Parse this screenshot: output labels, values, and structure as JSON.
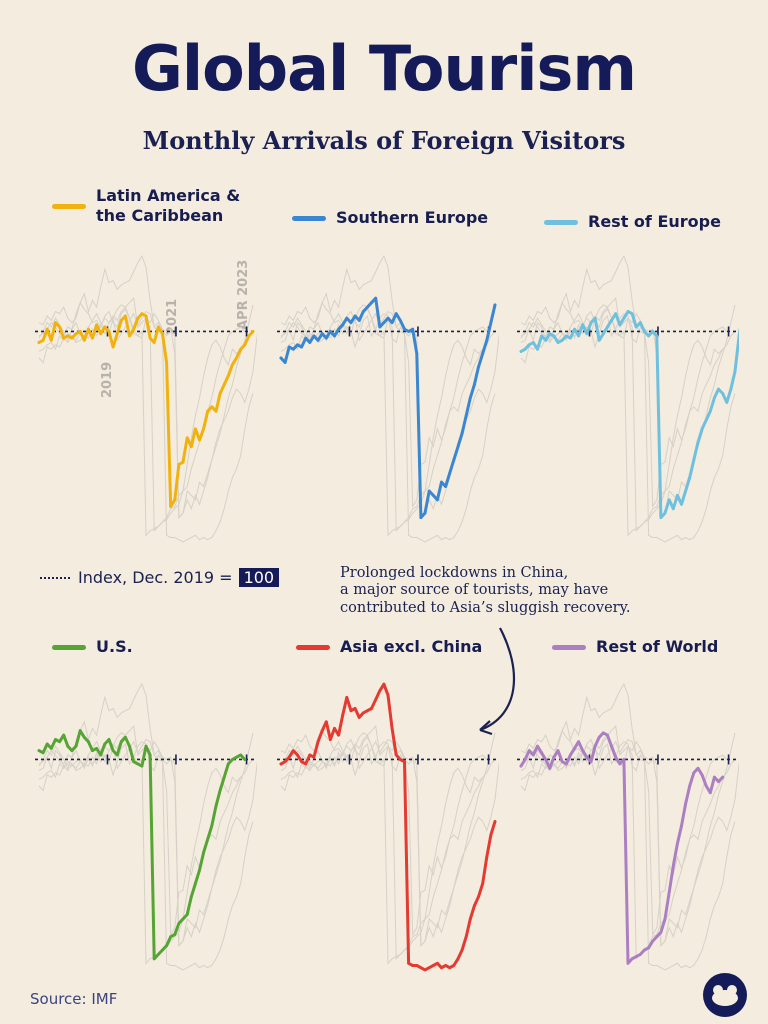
{
  "title": "Global Tourism",
  "subtitle": "Monthly Arrivals of Foreign Visitors",
  "index_note": {
    "label": "Index, Dec. 2019 =",
    "value": "100"
  },
  "annotation": {
    "line1": "Prolonged lockdowns in China,",
    "line2": "a major source of tourists, may have",
    "line3": "contributed to Asia’s sluggish recovery."
  },
  "year_labels": [
    "2019",
    "2021",
    "APR 2023"
  ],
  "source": "Source: IMF",
  "chart_data": [
    {
      "type": "line",
      "name_line1": "Latin America &",
      "name_line2": "the Caribbean",
      "color": "#f1b20f",
      "xlim": [
        0,
        52
      ],
      "ylim": [
        0,
        130
      ],
      "baseline": 100,
      "values": [
        95,
        96,
        101,
        96,
        104,
        102,
        97,
        98,
        97,
        99,
        100,
        96,
        101,
        97,
        103,
        99,
        102,
        100,
        93,
        99,
        105,
        107,
        98,
        101,
        106,
        108,
        107,
        97,
        95,
        102,
        99,
        86,
        21,
        24,
        40,
        41,
        52,
        48,
        56,
        51,
        56,
        64,
        66,
        64,
        72,
        76,
        80,
        85,
        88,
        92,
        94,
        98,
        100
      ]
    },
    {
      "type": "line",
      "name": "Southern Europe",
      "color": "#3a86d1",
      "xlim": [
        0,
        52
      ],
      "ylim": [
        0,
        130
      ],
      "baseline": 100,
      "values": [
        88,
        86,
        93,
        92,
        94,
        93,
        97,
        95,
        98,
        96,
        99,
        97,
        100,
        98,
        101,
        103,
        106,
        104,
        107,
        105,
        109,
        111,
        113,
        115,
        102,
        104,
        106,
        104,
        108,
        105,
        101,
        100,
        101,
        90,
        16,
        18,
        28,
        26,
        24,
        32,
        30,
        36,
        42,
        48,
        54,
        62,
        70,
        76,
        84,
        90,
        96,
        104,
        112
      ]
    },
    {
      "type": "line",
      "name": "Rest of Europe",
      "color": "#6fc0de",
      "xlim": [
        0,
        52
      ],
      "ylim": [
        0,
        130
      ],
      "baseline": 100,
      "values": [
        91,
        92,
        94,
        95,
        92,
        98,
        96,
        99,
        98,
        95,
        96,
        98,
        97,
        101,
        98,
        103,
        99,
        104,
        106,
        96,
        99,
        102,
        105,
        108,
        103,
        106,
        109,
        108,
        102,
        104,
        100,
        98,
        100,
        98,
        16,
        18,
        24,
        20,
        26,
        22,
        28,
        34,
        42,
        50,
        56,
        60,
        64,
        70,
        74,
        72,
        68,
        74,
        82,
        98,
        110
      ]
    },
    {
      "type": "line",
      "name": "U.S.",
      "color": "#56a534",
      "xlim": [
        0,
        52
      ],
      "ylim": [
        0,
        130
      ],
      "baseline": 100,
      "values": [
        104,
        103,
        107,
        105,
        109,
        108,
        111,
        106,
        104,
        106,
        113,
        110,
        108,
        104,
        105,
        102,
        107,
        109,
        104,
        102,
        108,
        110,
        106,
        99,
        98,
        97,
        106,
        102,
        10,
        12,
        14,
        16,
        20,
        21,
        26,
        28,
        30,
        38,
        44,
        50,
        58,
        64,
        70,
        79,
        86,
        92,
        98,
        100,
        101,
        102,
        100
      ]
    },
    {
      "type": "line",
      "name": "Asia excl. China",
      "color": "#e43a31",
      "xlim": [
        0,
        52
      ],
      "ylim": [
        0,
        130
      ],
      "baseline": 100,
      "values": [
        98,
        99,
        101,
        104,
        102,
        99,
        98,
        102,
        101,
        108,
        113,
        117,
        109,
        114,
        111,
        120,
        128,
        122,
        123,
        119,
        121,
        122,
        123,
        127,
        131,
        134,
        129,
        114,
        102,
        100,
        99,
        8,
        7,
        7,
        6,
        5,
        6,
        7,
        8,
        6,
        7,
        6,
        7,
        10,
        14,
        20,
        28,
        34,
        38,
        44,
        56,
        66,
        72
      ]
    },
    {
      "type": "line",
      "name": "Rest of World",
      "color": "#ab7fc2",
      "xlim": [
        0,
        52
      ],
      "ylim": [
        0,
        130
      ],
      "baseline": 100,
      "values": [
        97,
        100,
        104,
        102,
        106,
        103,
        100,
        96,
        101,
        104,
        99,
        98,
        102,
        105,
        108,
        104,
        101,
        99,
        106,
        110,
        112,
        111,
        106,
        101,
        98,
        100,
        8,
        10,
        11,
        12,
        14,
        15,
        18,
        20,
        22,
        28,
        40,
        52,
        62,
        70,
        80,
        88,
        94,
        96,
        93,
        88,
        85,
        92,
        90,
        92
      ]
    }
  ]
}
